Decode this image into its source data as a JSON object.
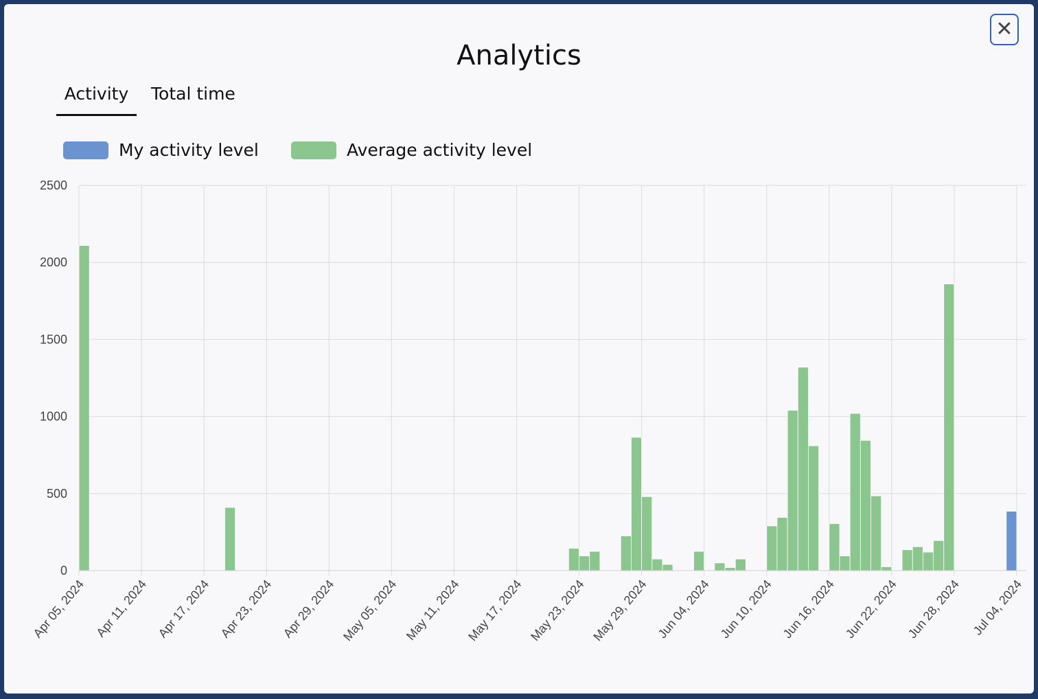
{
  "modal": {
    "title": "Analytics",
    "close_label": "✕"
  },
  "tabs": [
    {
      "label": "Activity",
      "active": true
    },
    {
      "label": "Total time",
      "active": false
    }
  ],
  "chart_data": {
    "type": "bar",
    "title": "",
    "xlabel": "",
    "ylabel": "",
    "ylim": [
      0,
      2500
    ],
    "yticks": [
      0,
      500,
      1000,
      1500,
      2000,
      2500
    ],
    "xticks": [
      "Apr 05, 2024",
      "Apr 11, 2024",
      "Apr 17, 2024",
      "Apr 23, 2024",
      "Apr 29, 2024",
      "May 05, 2024",
      "May 11, 2024",
      "May 17, 2024",
      "May 23, 2024",
      "May 29, 2024",
      "Jun 04, 2024",
      "Jun 10, 2024",
      "Jun 16, 2024",
      "Jun 22, 2024",
      "Jun 28, 2024",
      "Jul 04, 2024"
    ],
    "grid": true,
    "legend_position": "top-left",
    "series": [
      {
        "name": "My activity level",
        "color": "#6a93d0",
        "points": [
          {
            "date": "Jul 03, 2024",
            "value": 385
          }
        ]
      },
      {
        "name": "Average activity level",
        "color": "#8cc68f",
        "points": [
          {
            "date": "Apr 05, 2024",
            "value": 2110
          },
          {
            "date": "Apr 19, 2024",
            "value": 410
          },
          {
            "date": "May 22, 2024",
            "value": 145
          },
          {
            "date": "May 23, 2024",
            "value": 95
          },
          {
            "date": "May 24, 2024",
            "value": 125
          },
          {
            "date": "May 27, 2024",
            "value": 225
          },
          {
            "date": "May 28, 2024",
            "value": 865
          },
          {
            "date": "May 29, 2024",
            "value": 480
          },
          {
            "date": "May 30, 2024",
            "value": 75
          },
          {
            "date": "May 31, 2024",
            "value": 40
          },
          {
            "date": "Jun 03, 2024",
            "value": 125
          },
          {
            "date": "Jun 05, 2024",
            "value": 50
          },
          {
            "date": "Jun 06, 2024",
            "value": 20
          },
          {
            "date": "Jun 07, 2024",
            "value": 75
          },
          {
            "date": "Jun 10, 2024",
            "value": 290
          },
          {
            "date": "Jun 11, 2024",
            "value": 345
          },
          {
            "date": "Jun 12, 2024",
            "value": 1040
          },
          {
            "date": "Jun 13, 2024",
            "value": 1320
          },
          {
            "date": "Jun 14, 2024",
            "value": 810
          },
          {
            "date": "Jun 16, 2024",
            "value": 305
          },
          {
            "date": "Jun 17, 2024",
            "value": 95
          },
          {
            "date": "Jun 18, 2024",
            "value": 1020
          },
          {
            "date": "Jun 19, 2024",
            "value": 845
          },
          {
            "date": "Jun 20, 2024",
            "value": 485
          },
          {
            "date": "Jun 21, 2024",
            "value": 25
          },
          {
            "date": "Jun 23, 2024",
            "value": 135
          },
          {
            "date": "Jun 24, 2024",
            "value": 155
          },
          {
            "date": "Jun 25, 2024",
            "value": 120
          },
          {
            "date": "Jun 26, 2024",
            "value": 195
          },
          {
            "date": "Jun 27, 2024",
            "value": 1860
          },
          {
            "date": "Jul 03, 2024",
            "value": 385
          }
        ]
      }
    ]
  }
}
